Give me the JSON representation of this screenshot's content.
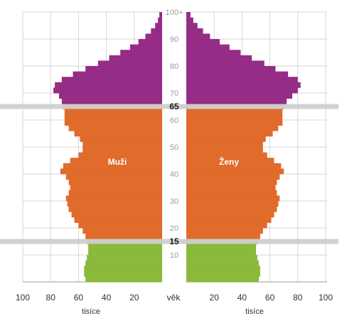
{
  "chart_data": {
    "type": "population-pyramid",
    "title": "",
    "xlabel_left": "tisíce",
    "xlabel_right": "tisíce",
    "center_label": "věk",
    "xlim": [
      0,
      100
    ],
    "x_ticks": [
      20,
      40,
      60,
      80,
      100
    ],
    "age_range": [
      0,
      100
    ],
    "age_ticks": [
      "10",
      "20",
      "30",
      "40",
      "50",
      "60",
      "70",
      "80",
      "90",
      "100+"
    ],
    "age_markers": [
      "15",
      "65"
    ],
    "series_labels": {
      "male": "Muži",
      "female": "Ženy"
    },
    "colors": {
      "young": "#8bb93b",
      "working": "#e06b2b",
      "old": "#952c86",
      "grid": "#d6d6d6",
      "marker": "#cfcfcf"
    },
    "ages": [
      0,
      2,
      4,
      6,
      8,
      10,
      12,
      14,
      16,
      18,
      20,
      22,
      24,
      26,
      28,
      30,
      32,
      34,
      36,
      38,
      40,
      42,
      44,
      46,
      48,
      50,
      52,
      54,
      56,
      58,
      60,
      62,
      64,
      66,
      68,
      70,
      72,
      74,
      76,
      78,
      80,
      82,
      84,
      86,
      88,
      90,
      92,
      94,
      96,
      98,
      100
    ],
    "male": [
      55,
      56,
      56,
      55,
      54,
      53,
      53,
      54,
      55,
      57,
      60,
      63,
      65,
      67,
      68,
      69,
      67,
      66,
      67,
      69,
      73,
      71,
      66,
      60,
      57,
      57,
      59,
      63,
      67,
      70,
      70,
      70,
      71,
      72,
      74,
      78,
      77,
      72,
      64,
      55,
      46,
      38,
      30,
      23,
      17,
      12,
      8,
      5,
      3,
      2,
      1
    ],
    "female": [
      52,
      53,
      53,
      52,
      51,
      50,
      50,
      51,
      53,
      55,
      58,
      61,
      63,
      65,
      66,
      67,
      65,
      64,
      65,
      67,
      70,
      68,
      63,
      58,
      55,
      55,
      57,
      62,
      66,
      69,
      69,
      69,
      70,
      72,
      76,
      80,
      82,
      80,
      73,
      64,
      56,
      47,
      39,
      31,
      24,
      17,
      12,
      8,
      5,
      3,
      1
    ]
  }
}
